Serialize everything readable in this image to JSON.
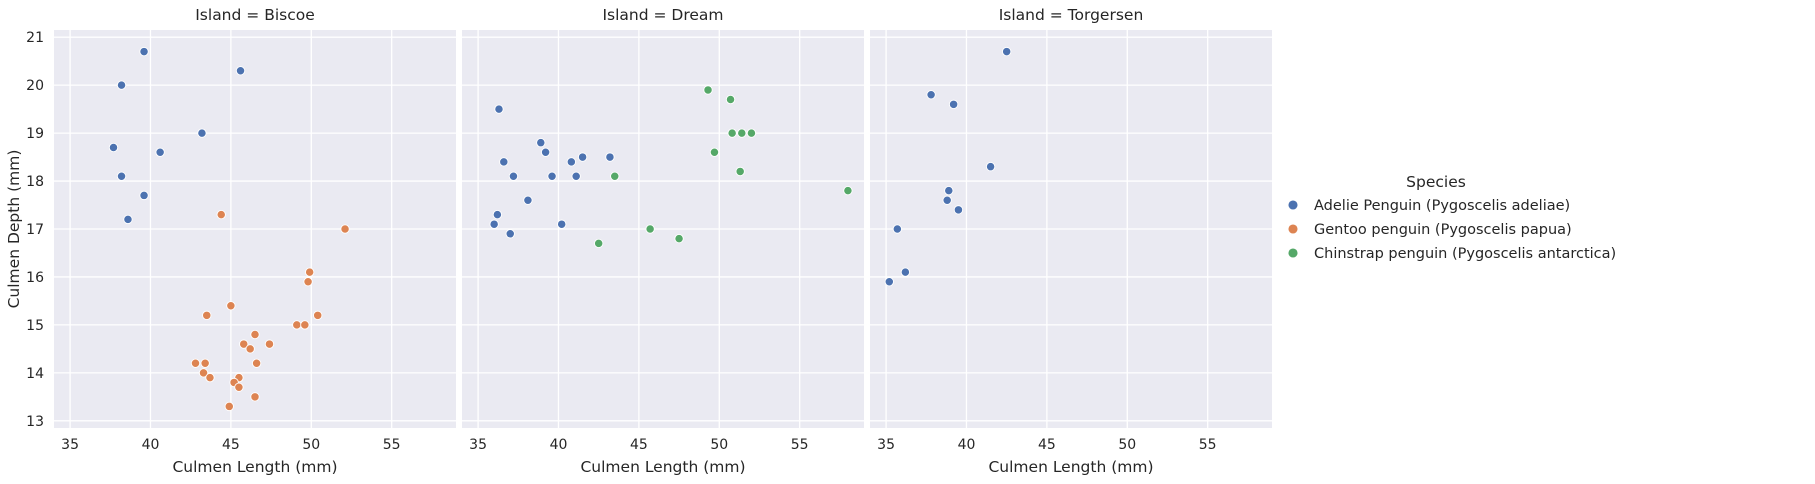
{
  "chart_data": {
    "type": "scatter",
    "xlabel": "Culmen Length (mm)",
    "ylabel": "Culmen Depth (mm)",
    "xlim": [
      34,
      59
    ],
    "ylim": [
      12.85,
      21.15
    ],
    "xticks": [
      35,
      40,
      45,
      50,
      55
    ],
    "yticks": [
      13,
      14,
      15,
      16,
      17,
      18,
      19,
      20,
      21
    ],
    "grid": true,
    "legend": {
      "title": "Species",
      "placement": "right",
      "entries": [
        {
          "label": "Adelie Penguin (Pygoscelis adeliae)",
          "color": "#4c72b0"
        },
        {
          "label": "Gentoo penguin (Pygoscelis papua)",
          "color": "#dd8452"
        },
        {
          "label": "Chinstrap penguin (Pygoscelis antarctica)",
          "color": "#55a868"
        }
      ]
    },
    "facets": [
      {
        "title": "Island = Biscoe",
        "series": [
          {
            "name": "Adelie Penguin (Pygoscelis adeliae)",
            "color": "#4c72b0",
            "points": [
              [
                39.6,
                20.7
              ],
              [
                45.6,
                20.3
              ],
              [
                38.2,
                20.0
              ],
              [
                43.2,
                19.0
              ],
              [
                37.7,
                18.7
              ],
              [
                40.6,
                18.6
              ],
              [
                38.2,
                18.1
              ],
              [
                39.6,
                17.7
              ],
              [
                38.6,
                17.2
              ]
            ]
          },
          {
            "name": "Gentoo penguin (Pygoscelis papua)",
            "color": "#dd8452",
            "points": [
              [
                44.4,
                17.3
              ],
              [
                52.1,
                17.0
              ],
              [
                49.9,
                16.1
              ],
              [
                49.8,
                15.9
              ],
              [
                45.0,
                15.4
              ],
              [
                43.5,
                15.2
              ],
              [
                50.4,
                15.2
              ],
              [
                49.1,
                15.0
              ],
              [
                49.6,
                15.0
              ],
              [
                46.5,
                14.8
              ],
              [
                45.8,
                14.6
              ],
              [
                47.4,
                14.6
              ],
              [
                46.2,
                14.5
              ],
              [
                42.8,
                14.2
              ],
              [
                43.4,
                14.2
              ],
              [
                46.6,
                14.2
              ],
              [
                43.3,
                14.0
              ],
              [
                43.7,
                13.9
              ],
              [
                45.5,
                13.9
              ],
              [
                45.2,
                13.8
              ],
              [
                45.5,
                13.7
              ],
              [
                46.5,
                13.5
              ],
              [
                44.9,
                13.3
              ]
            ]
          },
          {
            "name": "Chinstrap penguin (Pygoscelis antarctica)",
            "color": "#55a868",
            "points": []
          }
        ]
      },
      {
        "title": "Island = Dream",
        "series": [
          {
            "name": "Adelie Penguin (Pygoscelis adeliae)",
            "color": "#4c72b0",
            "points": [
              [
                36.3,
                19.5
              ],
              [
                38.9,
                18.8
              ],
              [
                39.2,
                18.6
              ],
              [
                36.6,
                18.4
              ],
              [
                41.5,
                18.5
              ],
              [
                43.2,
                18.5
              ],
              [
                40.8,
                18.4
              ],
              [
                37.2,
                18.1
              ],
              [
                39.6,
                18.1
              ],
              [
                41.1,
                18.1
              ],
              [
                38.1,
                17.6
              ],
              [
                36.2,
                17.3
              ],
              [
                36.0,
                17.1
              ],
              [
                40.2,
                17.1
              ],
              [
                37.0,
                16.9
              ]
            ]
          },
          {
            "name": "Gentoo penguin (Pygoscelis papua)",
            "color": "#dd8452",
            "points": []
          },
          {
            "name": "Chinstrap penguin (Pygoscelis antarctica)",
            "color": "#55a868",
            "points": [
              [
                49.3,
                19.9
              ],
              [
                50.7,
                19.7
              ],
              [
                50.8,
                19.0
              ],
              [
                51.4,
                19.0
              ],
              [
                52.0,
                19.0
              ],
              [
                49.7,
                18.6
              ],
              [
                51.3,
                18.2
              ],
              [
                43.5,
                18.1
              ],
              [
                58.0,
                17.8
              ],
              [
                45.7,
                17.0
              ],
              [
                47.5,
                16.8
              ],
              [
                42.5,
                16.7
              ]
            ]
          }
        ]
      },
      {
        "title": "Island = Torgersen",
        "series": [
          {
            "name": "Adelie Penguin (Pygoscelis adeliae)",
            "color": "#4c72b0",
            "points": [
              [
                42.5,
                20.7
              ],
              [
                37.8,
                19.8
              ],
              [
                39.2,
                19.6
              ],
              [
                41.5,
                18.3
              ],
              [
                38.9,
                17.8
              ],
              [
                38.8,
                17.6
              ],
              [
                39.5,
                17.4
              ],
              [
                35.7,
                17.0
              ],
              [
                36.2,
                16.1
              ],
              [
                35.2,
                15.9
              ]
            ]
          },
          {
            "name": "Gentoo penguin (Pygoscelis papua)",
            "color": "#dd8452",
            "points": []
          },
          {
            "name": "Chinstrap penguin (Pygoscelis antarctica)",
            "color": "#55a868",
            "points": []
          }
        ]
      }
    ]
  }
}
